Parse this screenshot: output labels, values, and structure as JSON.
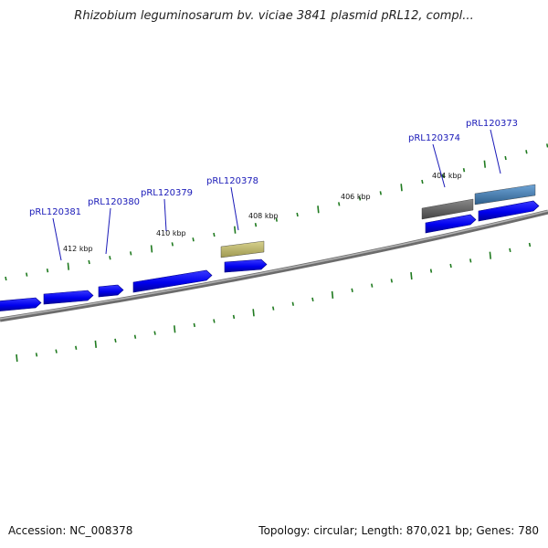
{
  "title": "Rhizobium leguminosarum bv. viciae 3841 plasmid pRL12, compl...",
  "footer": {
    "accession": "Accession: NC_008378",
    "summary": "Topology: circular; Length: 870,021 bp; Genes: 780"
  },
  "colors": {
    "backbone": "#8a8a8a",
    "cds": "#0000ee",
    "tick": "#1f7a1f",
    "label": "#1a1ab8",
    "gene_tan": "#bdb76b",
    "gene_gray": "#666666",
    "gene_steel": "#4682b4"
  },
  "scale_labels": [
    "412 kbp",
    "410 kbp",
    "408 kbp",
    "406 kbp",
    "404 kbp"
  ],
  "gene_labels": [
    "pRL120381",
    "pRL120380",
    "pRL120379",
    "pRL120378",
    "pRL120374",
    "pRL120373"
  ]
}
